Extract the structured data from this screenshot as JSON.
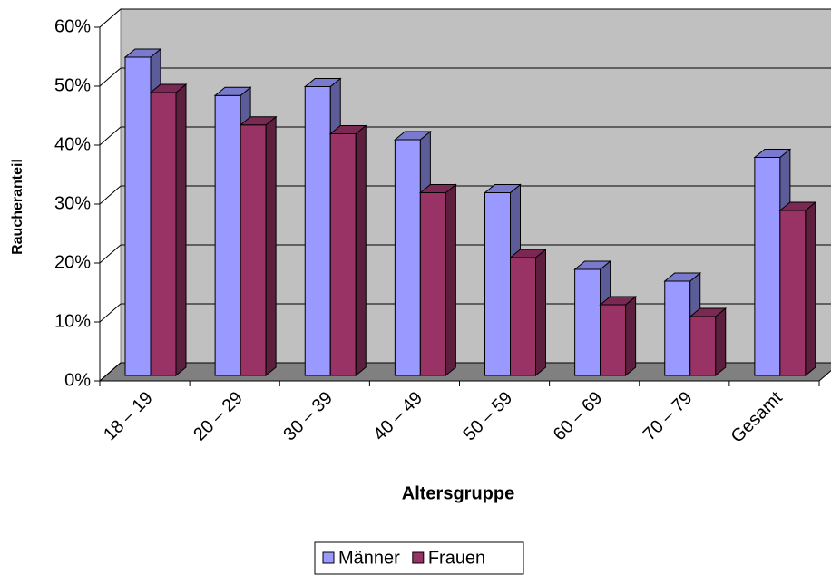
{
  "chart_data": {
    "type": "bar3d",
    "x_label": "Altersgruppe",
    "y_label": "Raucheranteil",
    "categories": [
      "18 – 19",
      "20 – 29",
      "30 – 39",
      "40 – 49",
      "50 – 59",
      "60 – 69",
      "70 – 79",
      "Gesamt"
    ],
    "series": [
      {
        "name": "Männer",
        "color": "#9999ff",
        "values": [
          54,
          47.5,
          49,
          40,
          31,
          18,
          16,
          37
        ]
      },
      {
        "name": "Frauen",
        "color": "#993366",
        "values": [
          48,
          42.5,
          41,
          31,
          20,
          12,
          10,
          28
        ]
      }
    ],
    "ylim": [
      0,
      60
    ],
    "yticks": [
      {
        "value": 0,
        "label": "0%"
      },
      {
        "value": 10,
        "label": "10%"
      },
      {
        "value": 20,
        "label": "20%"
      },
      {
        "value": 30,
        "label": "30%"
      },
      {
        "value": 40,
        "label": "40%"
      },
      {
        "value": 50,
        "label": "50%"
      },
      {
        "value": 60,
        "label": "60%"
      }
    ],
    "grid": true
  }
}
